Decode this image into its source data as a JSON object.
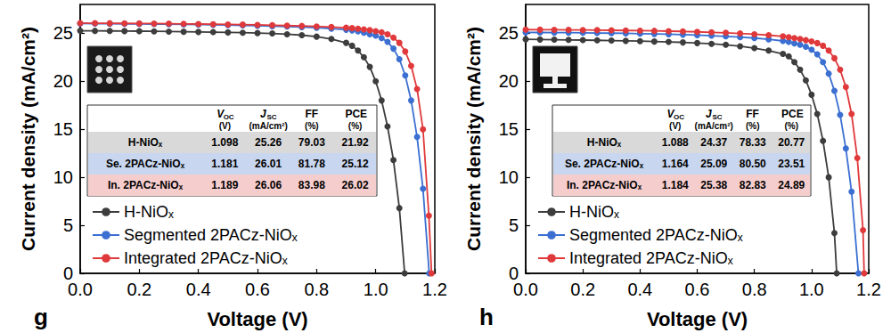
{
  "chart_data": [
    {
      "type": "line",
      "panel_label": "g",
      "x_label": "Voltage (V)",
      "y_label": "Current density (mA/cm²)",
      "xlim": [
        0,
        1.2
      ],
      "xticks": [
        {
          "value": 0,
          "label": "0.0"
        },
        0.2,
        0.4,
        0.6,
        0.8,
        {
          "value": 1,
          "label": "1.0"
        },
        1.2
      ],
      "ylim": [
        0,
        28
      ],
      "yticks": [
        0,
        5,
        10,
        15,
        20,
        25
      ],
      "grid": false,
      "legend": "lower left",
      "marker": "circle",
      "line_style": "solid",
      "series": [
        {
          "name": "H-NiOₓ",
          "color": "#3d3d3d",
          "x": [
            0,
            0.05,
            0.1,
            0.15,
            0.2,
            0.25,
            0.3,
            0.35,
            0.4,
            0.45,
            0.5,
            0.55,
            0.6,
            0.65,
            0.7,
            0.75,
            0.8,
            0.85,
            0.9,
            0.92,
            0.94,
            0.96,
            0.98,
            1.0,
            1.02,
            1.04,
            1.06,
            1.08,
            1.098
          ],
          "values": [
            25.26,
            25.25,
            25.24,
            25.23,
            25.22,
            25.2,
            25.18,
            25.16,
            25.14,
            25.12,
            25.09,
            25.06,
            25.02,
            24.98,
            24.9,
            24.8,
            24.65,
            24.4,
            24.0,
            23.7,
            23.2,
            22.5,
            21.5,
            20.0,
            18.0,
            15.3,
            11.8,
            6.8,
            0
          ]
        },
        {
          "name": "Segmented 2PACz-NiOₓ",
          "color": "#3b6fd1",
          "x": [
            0,
            0.05,
            0.1,
            0.15,
            0.2,
            0.25,
            0.3,
            0.35,
            0.4,
            0.45,
            0.5,
            0.55,
            0.6,
            0.65,
            0.7,
            0.75,
            0.8,
            0.85,
            0.9,
            0.92,
            0.94,
            0.96,
            0.98,
            1.0,
            1.02,
            1.04,
            1.06,
            1.08,
            1.1,
            1.12,
            1.14,
            1.16,
            1.181
          ],
          "values": [
            26.01,
            26.0,
            25.99,
            25.98,
            25.97,
            25.96,
            25.94,
            25.92,
            25.9,
            25.88,
            25.85,
            25.82,
            25.78,
            25.74,
            25.7,
            25.64,
            25.57,
            25.48,
            25.37,
            25.3,
            25.2,
            25.05,
            24.9,
            24.75,
            24.5,
            24.1,
            23.4,
            22.3,
            20.6,
            18.0,
            14.2,
            8.8,
            0
          ]
        },
        {
          "name": "Integrated 2PACz-NiOₓ",
          "color": "#e0393b",
          "x": [
            0,
            0.05,
            0.1,
            0.15,
            0.2,
            0.25,
            0.3,
            0.35,
            0.4,
            0.45,
            0.5,
            0.55,
            0.6,
            0.65,
            0.7,
            0.75,
            0.8,
            0.85,
            0.9,
            0.92,
            0.94,
            0.96,
            0.98,
            1.0,
            1.02,
            1.04,
            1.06,
            1.08,
            1.1,
            1.12,
            1.14,
            1.16,
            1.18,
            1.189
          ],
          "values": [
            26.06,
            26.05,
            26.04,
            26.03,
            26.02,
            26.01,
            26.0,
            25.98,
            25.96,
            25.94,
            25.92,
            25.9,
            25.87,
            25.84,
            25.8,
            25.76,
            25.71,
            25.65,
            25.58,
            25.53,
            25.47,
            25.4,
            25.32,
            25.22,
            25.1,
            24.9,
            24.55,
            24.0,
            23.1,
            21.6,
            19.2,
            15.0,
            6.0,
            0
          ]
        }
      ],
      "table": {
        "header": [
          {
            "symbol": "V",
            "sub": "OC",
            "unit": "(V)"
          },
          {
            "symbol": "J",
            "sub": "SC",
            "unit": "(mA/cm²)"
          },
          {
            "symbol": "FF",
            "unit": "(%)"
          },
          {
            "symbol": "PCE",
            "unit": "(%)"
          }
        ],
        "rows": [
          [
            "H-NiOₓ",
            "1.098",
            "25.26",
            "79.03",
            "21.92"
          ],
          [
            "Se. 2PACz-NiOₓ",
            "1.181",
            "26.01",
            "81.78",
            "25.12"
          ],
          [
            "In. 2PACz-NiOₓ",
            "1.189",
            "26.06",
            "83.98",
            "26.02"
          ]
        ]
      }
    },
    {
      "type": "line",
      "panel_label": "h",
      "x_label": "Voltage (V)",
      "y_label": "Current density (mA/cm²)",
      "xlim": [
        0,
        1.2
      ],
      "xticks": [
        {
          "value": 0,
          "label": "0.0"
        },
        0.2,
        0.4,
        0.6,
        0.8,
        {
          "value": 1,
          "label": "1.0"
        },
        1.2
      ],
      "ylim": [
        0,
        28
      ],
      "yticks": [
        0,
        5,
        10,
        15,
        20,
        25
      ],
      "grid": false,
      "legend": "lower left",
      "marker": "circle",
      "line_style": "solid",
      "series": [
        {
          "name": "H-NiOₓ",
          "color": "#3d3d3d",
          "x": [
            0,
            0.05,
            0.1,
            0.15,
            0.2,
            0.25,
            0.3,
            0.35,
            0.4,
            0.45,
            0.5,
            0.55,
            0.6,
            0.65,
            0.7,
            0.75,
            0.8,
            0.85,
            0.9,
            0.92,
            0.94,
            0.96,
            0.98,
            1.0,
            1.02,
            1.04,
            1.06,
            1.08,
            1.088
          ],
          "values": [
            24.37,
            24.35,
            24.33,
            24.31,
            24.29,
            24.27,
            24.24,
            24.21,
            24.18,
            24.14,
            24.1,
            24.05,
            23.98,
            23.9,
            23.8,
            23.65,
            23.45,
            23.2,
            22.85,
            22.6,
            22.0,
            21.2,
            20.1,
            18.6,
            16.6,
            13.8,
            10.0,
            4.2,
            0
          ]
        },
        {
          "name": "Segmented 2PACz-NiOₓ",
          "color": "#3b6fd1",
          "x": [
            0,
            0.05,
            0.1,
            0.15,
            0.2,
            0.25,
            0.3,
            0.35,
            0.4,
            0.45,
            0.5,
            0.55,
            0.6,
            0.65,
            0.7,
            0.75,
            0.8,
            0.85,
            0.9,
            0.92,
            0.94,
            0.96,
            0.98,
            1.0,
            1.02,
            1.04,
            1.06,
            1.08,
            1.1,
            1.12,
            1.14,
            1.164
          ],
          "values": [
            25.09,
            25.08,
            25.07,
            25.06,
            25.05,
            25.03,
            25.01,
            24.99,
            24.96,
            24.93,
            24.9,
            24.86,
            24.81,
            24.75,
            24.68,
            24.6,
            24.5,
            24.37,
            24.2,
            24.1,
            23.95,
            23.8,
            23.6,
            23.3,
            22.8,
            22.0,
            20.8,
            19.0,
            16.5,
            13.0,
            8.5,
            0
          ]
        },
        {
          "name": "Integrated 2PACz-NiOₓ",
          "color": "#e0393b",
          "x": [
            0,
            0.05,
            0.1,
            0.15,
            0.2,
            0.25,
            0.3,
            0.35,
            0.4,
            0.45,
            0.5,
            0.55,
            0.6,
            0.65,
            0.7,
            0.75,
            0.8,
            0.85,
            0.9,
            0.92,
            0.94,
            0.96,
            0.98,
            1.0,
            1.02,
            1.04,
            1.06,
            1.08,
            1.1,
            1.12,
            1.14,
            1.16,
            1.18,
            1.184
          ],
          "values": [
            25.38,
            25.37,
            25.36,
            25.35,
            25.34,
            25.33,
            25.31,
            25.29,
            25.27,
            25.25,
            25.22,
            25.19,
            25.15,
            25.1,
            25.05,
            24.98,
            24.9,
            24.8,
            24.68,
            24.6,
            24.5,
            24.4,
            24.28,
            24.15,
            23.98,
            23.7,
            23.2,
            22.4,
            21.2,
            19.4,
            16.6,
            12.0,
            4.5,
            0
          ]
        }
      ],
      "table": {
        "header": [
          {
            "symbol": "V",
            "sub": "OC",
            "unit": "(V)"
          },
          {
            "symbol": "J",
            "sub": "SC",
            "unit": "(mA/cm²)"
          },
          {
            "symbol": "FF",
            "unit": "(%)"
          },
          {
            "symbol": "PCE",
            "unit": "(%)"
          }
        ],
        "rows": [
          [
            "H-NiOₓ",
            "1.088",
            "24.37",
            "78.33",
            "20.77"
          ],
          [
            "Se. 2PACz-NiOₓ",
            "1.164",
            "25.09",
            "80.50",
            "23.51"
          ],
          [
            "In. 2PACz-NiOₓ",
            "1.184",
            "25.38",
            "82.83",
            "24.89"
          ]
        ]
      }
    }
  ]
}
